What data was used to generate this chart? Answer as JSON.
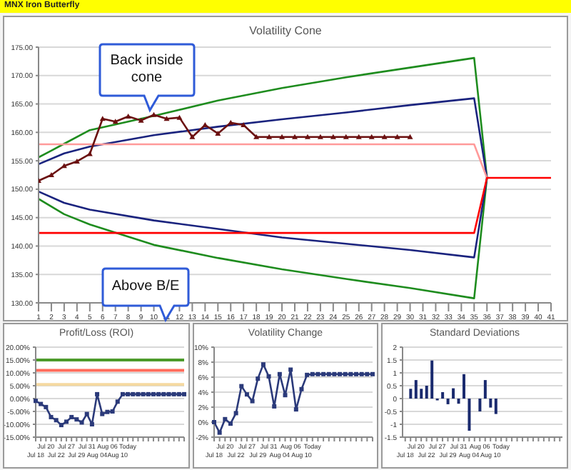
{
  "chart_data": [
    {
      "type": "line",
      "title": "Volatility Cone",
      "annotations": [
        "MNX Iron Butterfly",
        {
          "text": "Back inside cone",
          "x": 10,
          "y": 162.9
        }
      ],
      "xlim": [
        1,
        41
      ],
      "xticks": [
        1,
        2,
        3,
        4,
        5,
        6,
        7,
        8,
        9,
        10,
        11,
        12,
        13,
        14,
        15,
        16,
        17,
        18,
        19,
        20,
        21,
        22,
        23,
        24,
        25,
        26,
        27,
        28,
        29,
        30,
        31,
        32,
        33,
        34,
        35,
        36,
        37,
        38,
        39,
        40,
        41
      ],
      "ylim": [
        130,
        175
      ],
      "yticks": [
        {
          "value": 130,
          "label": "130.00"
        },
        {
          "value": 135,
          "label": "135.00"
        },
        {
          "value": 140,
          "label": "140.00"
        },
        {
          "value": 145,
          "label": "145.00"
        },
        {
          "value": 150,
          "label": "150.00"
        },
        {
          "value": 155,
          "label": "155.00"
        },
        {
          "value": 160,
          "label": "160.00"
        },
        {
          "value": 165,
          "label": "165.00"
        },
        {
          "value": 170,
          "label": "170.00"
        },
        {
          "value": 175,
          "label": "175.00"
        }
      ],
      "grid": "y",
      "legend": false,
      "series": [
        {
          "color": "#1e8c1e",
          "marker": "none",
          "x": [
            1,
            2,
            3,
            5,
            10,
            15,
            20,
            25,
            30,
            35,
            36,
            35,
            30,
            25,
            20,
            15,
            10,
            5,
            3,
            1
          ],
          "values": [
            155.6,
            156.8,
            158.0,
            160.4,
            162.9,
            165.6,
            167.8,
            169.7,
            171.4,
            173.1,
            152,
            130.8,
            132.6,
            134.2,
            135.9,
            137.9,
            140.2,
            143.8,
            145.6,
            148.3
          ]
        },
        {
          "color": "#1a237e",
          "marker": "none",
          "x": [
            1,
            3,
            5,
            10,
            15,
            20,
            25,
            30,
            35,
            36,
            35,
            30,
            25,
            20,
            15,
            10,
            5,
            3,
            1
          ],
          "values": [
            154.4,
            156.3,
            157.5,
            159.5,
            161.0,
            162.3,
            163.5,
            164.8,
            166.0,
            152,
            138.0,
            139.3,
            140.4,
            141.5,
            143.0,
            144.5,
            146.4,
            147.6,
            149.6
          ]
        },
        {
          "color": "#ff9a9a",
          "marker": "none",
          "x": [
            1,
            35,
            36
          ],
          "values": [
            157.9,
            157.9,
            152
          ]
        },
        {
          "color": "#ff0000",
          "marker": "none",
          "x": [
            1,
            35,
            36,
            41
          ],
          "values": [
            142.3,
            142.3,
            152,
            152
          ]
        },
        {
          "color": "#6b1010",
          "marker": "triangle",
          "x": [
            1,
            2,
            3,
            4,
            5,
            6,
            7,
            8,
            9,
            10,
            11,
            12,
            13,
            14,
            15,
            16,
            17,
            18,
            19,
            20,
            21,
            22,
            23,
            24,
            25,
            26,
            27,
            28,
            29,
            30
          ],
          "values": [
            151.5,
            152.5,
            154.1,
            154.9,
            156.2,
            162.4,
            161.9,
            162.8,
            162.1,
            163.1,
            162.4,
            162.6,
            159.2,
            161.3,
            159.8,
            161.7,
            161.3,
            159.2,
            159.2,
            159.2,
            159.2,
            159.2,
            159.2,
            159.2,
            159.2,
            159.2,
            159.2,
            159.2,
            159.2,
            159.2
          ]
        }
      ]
    },
    {
      "type": "line",
      "title": "Profit/Loss (ROI)",
      "annotations": [
        "Above B/E"
      ],
      "marker": "square",
      "grid": "y",
      "legend": false,
      "categories": [
        "Jul 18",
        null,
        "Jul 20",
        null,
        "Jul 22",
        null,
        "Jul 27",
        null,
        "Jul 29",
        null,
        "Jul 31",
        null,
        "Aug 04",
        null,
        "Aug 06",
        null,
        "Aug 10",
        null,
        "Today",
        null,
        null,
        null,
        null,
        null,
        null,
        null,
        null,
        null,
        null,
        null
      ],
      "ylim": [
        -15,
        20
      ],
      "yticks": [
        {
          "value": -15,
          "label": "-15.00%"
        },
        {
          "value": -10,
          "label": "-10.00%"
        },
        {
          "value": -5,
          "label": "-5.00%"
        },
        {
          "value": 0,
          "label": "0.00%"
        },
        {
          "value": 5,
          "label": "5.00%"
        },
        {
          "value": 10,
          "label": "10.00%"
        },
        {
          "value": 15,
          "label": "15.00%"
        },
        {
          "value": 20,
          "label": "20.00%"
        }
      ],
      "ref_lines": [
        {
          "axis": "y",
          "value": 15,
          "color": "#4c9a2a"
        },
        {
          "axis": "y",
          "value": 11,
          "color": "#ff6b5b"
        },
        {
          "axis": "y",
          "value": 5.5,
          "color": "#f5d9a0"
        }
      ],
      "series": [
        {
          "color": "#2b3a7a",
          "values": [
            -0.9,
            -2.1,
            -3.3,
            -7.2,
            -8.4,
            -10.3,
            -9.0,
            -7.2,
            -8.1,
            -9.3,
            -6.0,
            -10.0,
            1.7,
            -6.0,
            -5.2,
            -5.0,
            -1.2,
            1.7,
            1.7,
            1.7,
            1.7,
            1.7,
            1.7,
            1.7,
            1.7,
            1.7,
            1.7,
            1.7,
            1.7,
            1.7
          ]
        }
      ]
    },
    {
      "type": "line",
      "title": "Volatility Change",
      "marker": "square",
      "grid": "y",
      "legend": false,
      "categories": [
        "Jul 18",
        null,
        "Jul 20",
        null,
        "Jul 22",
        null,
        "Jul 27",
        null,
        "Jul 29",
        null,
        "Jul 31",
        null,
        "Aug 04",
        null,
        "Aug 06",
        null,
        "Aug 10",
        null,
        "Today",
        null,
        null,
        null,
        null,
        null,
        null,
        null,
        null,
        null,
        null,
        null
      ],
      "ylim": [
        -2,
        10
      ],
      "yticks": [
        {
          "value": -2,
          "label": "-2%"
        },
        {
          "value": 0,
          "label": "0%"
        },
        {
          "value": 2,
          "label": "2%"
        },
        {
          "value": 4,
          "label": "4%"
        },
        {
          "value": 6,
          "label": "6%"
        },
        {
          "value": 8,
          "label": "8%"
        },
        {
          "value": 10,
          "label": "10%"
        }
      ],
      "series": [
        {
          "color": "#2b3a7a",
          "values": [
            0,
            -1.4,
            0.4,
            -0.2,
            1.2,
            4.8,
            3.7,
            2.8,
            5.8,
            7.7,
            6.1,
            2.1,
            6.4,
            3.6,
            7.0,
            1.7,
            4.4,
            6.3,
            6.4,
            6.4,
            6.4,
            6.4,
            6.4,
            6.4,
            6.4,
            6.4,
            6.4,
            6.4,
            6.4,
            6.4
          ]
        }
      ]
    },
    {
      "type": "bar",
      "title": "Standard Deviations",
      "grid": "y",
      "legend": false,
      "categories": [
        "Jul 18",
        null,
        "Jul 20",
        null,
        "Jul 22",
        null,
        "Jul 27",
        null,
        "Jul 29",
        null,
        "Jul 31",
        null,
        "Aug 04",
        null,
        "Aug 06",
        null,
        "Aug 10",
        null,
        "Today",
        null,
        null,
        null,
        null,
        null,
        null,
        null,
        null,
        null,
        null,
        null
      ],
      "ylim": [
        -1.5,
        2
      ],
      "yticks": [
        -1.5,
        -1,
        -0.5,
        0,
        0.5,
        1,
        1.5,
        2
      ],
      "series": [
        {
          "color": "#1a2a6e",
          "values": [
            null,
            0.38,
            0.72,
            0.38,
            0.5,
            1.48,
            -0.07,
            0.25,
            -0.22,
            0.4,
            -0.2,
            0.95,
            -1.25,
            null,
            -0.5,
            0.72,
            -0.35,
            -0.6,
            null,
            null,
            null,
            null,
            null,
            null,
            null,
            null,
            null,
            null,
            null,
            null
          ]
        }
      ]
    }
  ]
}
